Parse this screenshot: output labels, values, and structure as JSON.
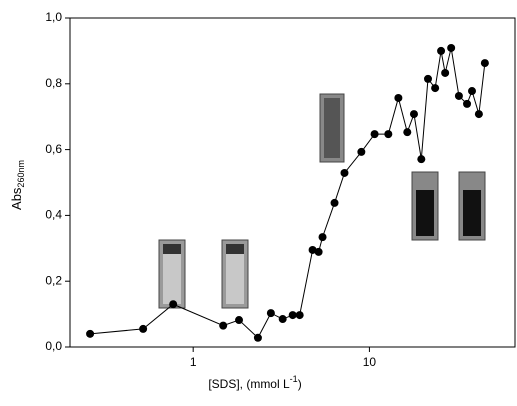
{
  "chart_data": {
    "type": "line",
    "xscale": "log",
    "x_label": "[SDS], (mmol L",
    "x_label_sup": "-1",
    "x_label_end": ")",
    "y_label": "Abs",
    "y_label_sub": "260nm",
    "xlim": [
      0.2,
      67
    ],
    "xticks": [
      1,
      10
    ],
    "ylim": [
      0,
      1
    ],
    "yticks": [
      {
        "value": 0,
        "label": "0,0"
      },
      {
        "value": 0.2,
        "label": "0,2"
      },
      {
        "value": 0.4,
        "label": "0,4"
      },
      {
        "value": 0.6,
        "label": "0,6"
      },
      {
        "value": 0.8,
        "label": "0,8"
      },
      {
        "value": 1,
        "label": "1,0"
      }
    ],
    "series": [
      {
        "color": "#000000",
        "x": [
          0.26,
          0.52,
          0.77,
          1.48,
          1.82,
          2.33,
          2.76,
          3.22,
          3.67,
          4.02,
          4.76,
          5.15,
          5.42,
          6.34,
          7.22,
          9.0,
          10.7,
          12.8,
          14.6,
          16.4,
          17.9,
          19.7,
          21.5,
          23.6,
          25.5,
          26.9,
          29.1,
          32.2,
          35.8,
          38.2,
          41.8,
          45.2
        ],
        "values": [
          0.04,
          0.055,
          0.13,
          0.065,
          0.082,
          0.028,
          0.103,
          0.085,
          0.097,
          0.097,
          0.295,
          0.289,
          0.334,
          0.438,
          0.529,
          0.593,
          0.647,
          0.647,
          0.757,
          0.653,
          0.708,
          0.571,
          0.815,
          0.787,
          0.9,
          0.833,
          0.909,
          0.763,
          0.739,
          0.778,
          0.708,
          0.863
        ]
      }
    ]
  }
}
